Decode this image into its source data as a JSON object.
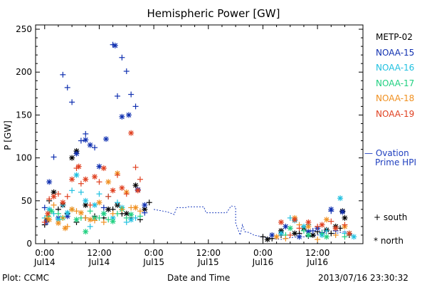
{
  "chart_data": {
    "type": "scatter",
    "title": "Hemispheric Power [GW]",
    "xlabel": "Date and Time",
    "ylabel": "P [GW]",
    "xlim_hours": [
      -2,
      70
    ],
    "ylim": [
      0,
      255
    ],
    "y_ticks": [
      0,
      50,
      100,
      150,
      200,
      250
    ],
    "x_ticks": [
      {
        "t": 0,
        "time": "0:00",
        "date": "Jul14"
      },
      {
        "t": 12,
        "time": "12:00",
        "date": "Jul14"
      },
      {
        "t": 24,
        "time": "0:00",
        "date": "Jul15"
      },
      {
        "t": 36,
        "time": "12:00",
        "date": "Jul15"
      },
      {
        "t": 48,
        "time": "0:00",
        "date": "Jul16"
      },
      {
        "t": 60,
        "time": "12:00",
        "date": "Jul16"
      }
    ],
    "x_unit_note": "t = hours since 2013-07-14 00:00 UTC",
    "ovation_line": {
      "name": "— Ovation Prime HPI",
      "color": "#1f3fbf",
      "points": [
        [
          24,
          40
        ],
        [
          27,
          37
        ],
        [
          28,
          35
        ],
        [
          28.5,
          34
        ],
        [
          29,
          42
        ],
        [
          31,
          42
        ],
        [
          31.5,
          43
        ],
        [
          35,
          43
        ],
        [
          35.5,
          36
        ],
        [
          38,
          36
        ],
        [
          40,
          36
        ],
        [
          41,
          44
        ],
        [
          42,
          43
        ],
        [
          42,
          36
        ],
        [
          42,
          24
        ],
        [
          43,
          10
        ],
        [
          43.5,
          22
        ],
        [
          44,
          14
        ],
        [
          45,
          13
        ],
        [
          46,
          10
        ],
        [
          48,
          8
        ],
        [
          50,
          6
        ],
        [
          52,
          5
        ],
        [
          54,
          7
        ],
        [
          56,
          8
        ],
        [
          58,
          8
        ],
        [
          60,
          10
        ],
        [
          62,
          12
        ],
        [
          64,
          12
        ],
        [
          66,
          14
        ],
        [
          68,
          10
        ]
      ]
    },
    "series": [
      {
        "name": "METP-02",
        "color": "#000000",
        "south": [
          [
            0,
            22
          ],
          [
            1,
            50
          ],
          [
            3,
            40
          ],
          [
            5,
            35
          ],
          [
            7,
            25
          ],
          [
            9,
            30
          ],
          [
            11,
            32
          ],
          [
            13,
            30
          ],
          [
            15,
            40
          ],
          [
            17,
            35
          ],
          [
            19,
            30
          ],
          [
            21,
            28
          ],
          [
            23,
            48
          ],
          [
            48,
            8
          ],
          [
            50,
            6
          ],
          [
            52,
            10
          ],
          [
            56,
            12
          ],
          [
            58,
            9
          ],
          [
            60,
            14
          ],
          [
            63,
            12
          ],
          [
            65,
            18
          ],
          [
            67,
            10
          ]
        ],
        "north": [
          [
            0.5,
            28
          ],
          [
            2,
            60
          ],
          [
            4,
            45
          ],
          [
            6,
            100
          ],
          [
            7,
            108
          ],
          [
            9,
            45
          ],
          [
            11,
            30
          ],
          [
            14,
            40
          ],
          [
            16,
            45
          ],
          [
            18,
            35
          ],
          [
            20,
            68
          ],
          [
            22,
            40
          ],
          [
            49,
            5
          ],
          [
            52,
            15
          ],
          [
            55,
            12
          ],
          [
            57,
            18
          ],
          [
            59,
            10
          ],
          [
            62,
            16
          ],
          [
            64,
            20
          ],
          [
            65.5,
            38
          ],
          [
            66,
            30
          ]
        ]
      },
      {
        "name": "NOAA-15",
        "color": "#1030b0",
        "south": [
          [
            0,
            42
          ],
          [
            2,
            101
          ],
          [
            4,
            197
          ],
          [
            5,
            182
          ],
          [
            6,
            165
          ],
          [
            8,
            120
          ],
          [
            9,
            128
          ],
          [
            11,
            112
          ],
          [
            13,
            42
          ],
          [
            15,
            232
          ],
          [
            16,
            172
          ],
          [
            17,
            217
          ],
          [
            18,
            201
          ],
          [
            19,
            174
          ],
          [
            20,
            160
          ],
          [
            22,
            36
          ],
          [
            59,
            15
          ],
          [
            61,
            13
          ],
          [
            63,
            38
          ],
          [
            64,
            15
          ]
        ],
        "north": [
          [
            0.3,
            25
          ],
          [
            1,
            72
          ],
          [
            3,
            30
          ],
          [
            5,
            32
          ],
          [
            7,
            105
          ],
          [
            9,
            121
          ],
          [
            10,
            115
          ],
          [
            12,
            90
          ],
          [
            13.5,
            122
          ],
          [
            15.5,
            231
          ],
          [
            17,
            148
          ],
          [
            18.5,
            150
          ],
          [
            20.5,
            63
          ],
          [
            22,
            45
          ],
          [
            50,
            10
          ],
          [
            53,
            20
          ],
          [
            56,
            8
          ],
          [
            58,
            14
          ],
          [
            60,
            18
          ],
          [
            63,
            40
          ],
          [
            65.5,
            37
          ]
        ]
      },
      {
        "name": "NOAA-16",
        "color": "#20c0e0",
        "south": [
          [
            0,
            30
          ],
          [
            2,
            35
          ],
          [
            4,
            45
          ],
          [
            6,
            62
          ],
          [
            8,
            60
          ],
          [
            10,
            20
          ],
          [
            12,
            58
          ],
          [
            14,
            55
          ],
          [
            16,
            48
          ],
          [
            18,
            25
          ],
          [
            20,
            30
          ],
          [
            54,
            30
          ],
          [
            58,
            22
          ],
          [
            62,
            15
          ],
          [
            66,
            12
          ]
        ],
        "north": [
          [
            1,
            40
          ],
          [
            3,
            28
          ],
          [
            5,
            36
          ],
          [
            7,
            80
          ],
          [
            9,
            50
          ],
          [
            11,
            45
          ],
          [
            13,
            35
          ],
          [
            15,
            30
          ],
          [
            17,
            42
          ],
          [
            19,
            28
          ],
          [
            52,
            12
          ],
          [
            55,
            27
          ],
          [
            57,
            20
          ],
          [
            61,
            10
          ],
          [
            65,
            53
          ],
          [
            68,
            8
          ]
        ]
      },
      {
        "name": "NOAA-17",
        "color": "#20d080",
        "south": [
          [
            0.8,
            32
          ],
          [
            3,
            35
          ],
          [
            6,
            40
          ],
          [
            8,
            30
          ],
          [
            10,
            38
          ],
          [
            12,
            30
          ],
          [
            14,
            28
          ],
          [
            16,
            35
          ],
          [
            18,
            30
          ],
          [
            21,
            32
          ],
          [
            53,
            10
          ],
          [
            57,
            15
          ],
          [
            61,
            12
          ],
          [
            66,
            8
          ]
        ],
        "north": [
          [
            1.5,
            38
          ],
          [
            4,
            30
          ],
          [
            7,
            28
          ],
          [
            9,
            14
          ],
          [
            11,
            30
          ],
          [
            13,
            35
          ],
          [
            15,
            26
          ],
          [
            17,
            40
          ],
          [
            19,
            34
          ],
          [
            54,
            18
          ],
          [
            58,
            10
          ],
          [
            62,
            8
          ],
          [
            67,
            12
          ]
        ]
      },
      {
        "name": "NOAA-18",
        "color": "#f09020",
        "south": [
          [
            0.5,
            30
          ],
          [
            2,
            45
          ],
          [
            4,
            30
          ],
          [
            5,
            20
          ],
          [
            7,
            38
          ],
          [
            9,
            30
          ],
          [
            11,
            27
          ],
          [
            13,
            25
          ],
          [
            15,
            35
          ],
          [
            17,
            40
          ],
          [
            19,
            42
          ],
          [
            21,
            38
          ],
          [
            53,
            6
          ],
          [
            56,
            22
          ],
          [
            60,
            5
          ],
          [
            64,
            10
          ]
        ],
        "north": [
          [
            1,
            28
          ],
          [
            3,
            24
          ],
          [
            4.5,
            18
          ],
          [
            6,
            40
          ],
          [
            8,
            36
          ],
          [
            10,
            28
          ],
          [
            12,
            48
          ],
          [
            14,
            72
          ],
          [
            16,
            82
          ],
          [
            18,
            60
          ],
          [
            20,
            42
          ],
          [
            51,
            8
          ],
          [
            55,
            30
          ],
          [
            58,
            20
          ],
          [
            62,
            28
          ],
          [
            66,
            20
          ]
        ]
      },
      {
        "name": "NOAA-19",
        "color": "#e04020",
        "south": [
          [
            0,
            25
          ],
          [
            1,
            52
          ],
          [
            3,
            58
          ],
          [
            5,
            55
          ],
          [
            7,
            88
          ],
          [
            8,
            70
          ],
          [
            10,
            45
          ],
          [
            12,
            72
          ],
          [
            14,
            55
          ],
          [
            16,
            80
          ],
          [
            18,
            58
          ],
          [
            20,
            89
          ],
          [
            21,
            75
          ],
          [
            54,
            10
          ],
          [
            56,
            18
          ],
          [
            60,
            20
          ],
          [
            63,
            26
          ],
          [
            66,
            22
          ]
        ],
        "north": [
          [
            0.7,
            35
          ],
          [
            2,
            55
          ],
          [
            4,
            48
          ],
          [
            6,
            75
          ],
          [
            7.5,
            90
          ],
          [
            9,
            75
          ],
          [
            11,
            78
          ],
          [
            13,
            88
          ],
          [
            15,
            62
          ],
          [
            17,
            65
          ],
          [
            19,
            129
          ],
          [
            20.5,
            62
          ],
          [
            52,
            25
          ],
          [
            55,
            28
          ],
          [
            58,
            25
          ],
          [
            61,
            22
          ],
          [
            64,
            18
          ],
          [
            67,
            12
          ]
        ]
      }
    ]
  },
  "legend": {
    "ovation_line1": "— Ovation",
    "ovation_line2": "Prime HPI",
    "south_label": "+ south",
    "north_label": "* north"
  },
  "footer": {
    "left": "Plot: CCMC",
    "center": "Date and Time",
    "right": "2013/07/16 23:30:32"
  }
}
